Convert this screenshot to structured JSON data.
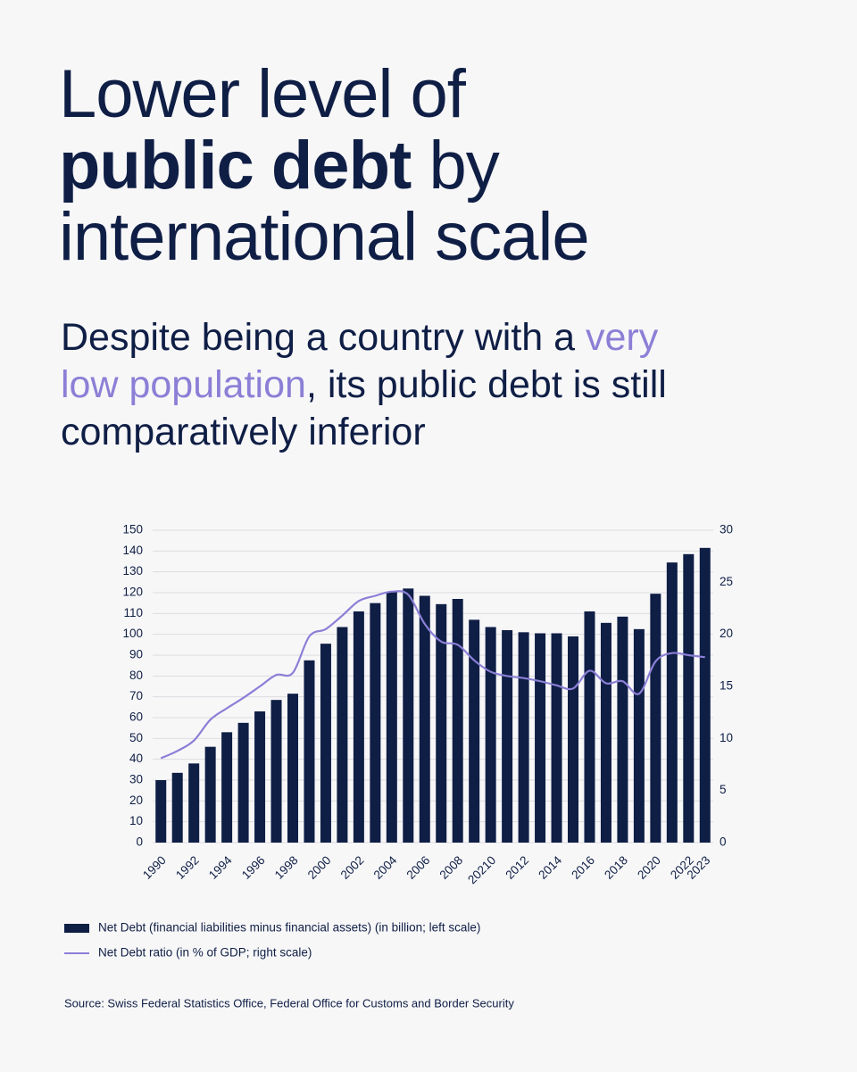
{
  "title": {
    "line1": "Lower level of",
    "bold": "public debt",
    "rest": "by",
    "line3": "international scale"
  },
  "subtitle": {
    "part1": "Despite being a country with a",
    "highlight1": "very",
    "highlight2": "low population",
    "part2": ", its public debt is still",
    "part3": "comparatively inferior"
  },
  "source": "Source: Swiss Federal Statistics Office, Federal Office for Customs and Border Security",
  "chart_data": {
    "type": "bar",
    "categories": [
      "1990",
      null,
      "1992",
      null,
      "1994",
      null,
      "1996",
      null,
      "1998",
      null,
      "2000",
      null,
      "2002",
      null,
      "2004",
      null,
      "2006",
      null,
      "2008",
      null,
      "20210",
      null,
      "2012",
      null,
      "2014",
      null,
      "2016",
      null,
      "2018",
      null,
      "2020",
      null,
      "2022",
      "2023"
    ],
    "series": [
      {
        "name": "Net Debt (financial liabilities minus financial assets) (in billion; left scale)",
        "type": "bar",
        "color": "#0f1e45",
        "values": [
          30,
          33.5,
          38,
          46,
          53,
          57.5,
          63,
          68.5,
          71.5,
          87.5,
          95.5,
          103.5,
          111,
          115,
          120.5,
          122,
          118.5,
          114.5,
          117,
          107,
          103.5,
          102,
          101,
          100.5,
          100.5,
          99,
          111,
          105.5,
          108.5,
          102.5,
          119.5,
          134.5,
          138.5,
          141.5
        ]
      },
      {
        "name": "Net Debt ratio (in % of GDP; right scale)",
        "type": "line",
        "axis": "y2",
        "color": "#8b7fd6",
        "values": [
          8.1,
          8.8,
          9.8,
          11.8,
          12.9,
          13.9,
          15.0,
          16.1,
          16.3,
          19.8,
          20.5,
          21.8,
          23.2,
          23.7,
          24.1,
          23.8,
          21.0,
          19.3,
          19.0,
          17.5,
          16.4,
          16.0,
          15.8,
          15.5,
          15.1,
          14.8,
          16.5,
          15.3,
          15.5,
          14.3,
          17.4,
          18.2,
          18.0,
          17.8
        ]
      }
    ],
    "ylim": [
      0,
      150
    ],
    "yticks": [
      0,
      10,
      20,
      30,
      40,
      50,
      60,
      70,
      80,
      90,
      100,
      110,
      120,
      130,
      140,
      150
    ],
    "y2lim": [
      0,
      30
    ],
    "y2ticks": [
      0,
      5,
      10,
      15,
      20,
      25,
      30
    ],
    "grid": true
  }
}
